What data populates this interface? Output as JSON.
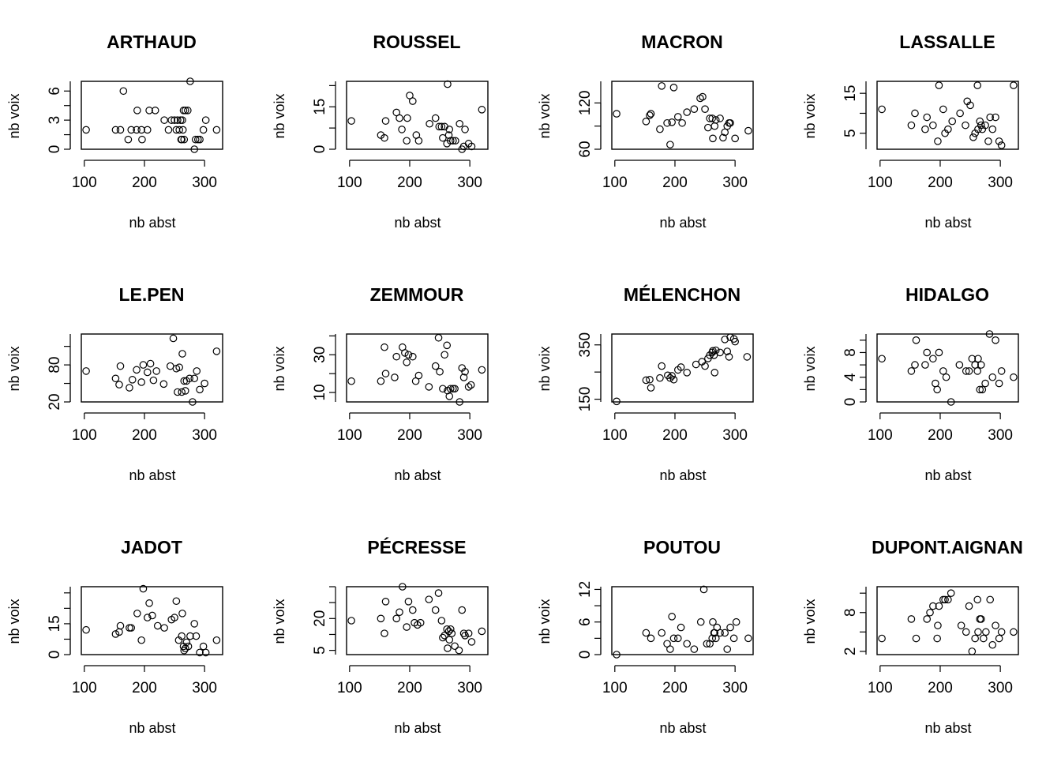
{
  "chart_data": [
    {
      "type": "scatter",
      "title": "ARTHAUD",
      "xlabel": "nb abst",
      "ylabel": "nb voix",
      "xlim": [
        95,
        330
      ],
      "ylim": [
        0,
        7
      ],
      "xticks": [
        100,
        200,
        300
      ],
      "yticks": [
        0,
        3,
        6
      ],
      "x": [
        103,
        152,
        160,
        165,
        173,
        178,
        187,
        188,
        195,
        196,
        205,
        208,
        218,
        233,
        240,
        245,
        250,
        253,
        255,
        258,
        260,
        261,
        262,
        263,
        264,
        265,
        266,
        268,
        272,
        276,
        283,
        285,
        289,
        292,
        298,
        302,
        320
      ],
      "y": [
        2,
        2,
        2,
        6,
        1,
        2,
        2,
        4,
        2,
        1,
        2,
        4,
        4,
        3,
        2,
        3,
        3,
        2,
        3,
        2,
        3,
        1,
        1,
        3,
        2,
        4,
        1,
        4,
        4,
        7,
        0,
        1,
        1,
        1,
        2,
        3,
        2
      ]
    },
    {
      "type": "scatter",
      "title": "ROUSSEL",
      "xlabel": "nb abst",
      "ylabel": "nb voix",
      "xlim": [
        95,
        330
      ],
      "ylim": [
        0,
        24
      ],
      "xticks": [
        100,
        200,
        300
      ],
      "yticks": [
        0,
        15
      ],
      "x": [
        103,
        152,
        158,
        160,
        178,
        183,
        187,
        195,
        196,
        200,
        205,
        211,
        215,
        233,
        243,
        249,
        253,
        255,
        258,
        262,
        263,
        265,
        266,
        268,
        272,
        276,
        283,
        287,
        290,
        292,
        298,
        303,
        320
      ],
      "y": [
        10,
        5,
        4,
        10,
        13,
        11,
        7,
        3,
        11,
        19,
        17,
        5,
        3,
        9,
        11,
        8,
        8,
        4,
        8,
        2,
        23,
        5,
        7,
        3,
        3,
        3,
        9,
        0,
        1,
        7,
        2,
        1,
        14
      ]
    },
    {
      "type": "scatter",
      "title": "MACRON",
      "xlabel": "nb abst",
      "ylabel": "nb voix",
      "xlim": [
        95,
        330
      ],
      "ylim": [
        60,
        148
      ],
      "xticks": [
        100,
        200,
        300
      ],
      "yticks": [
        60,
        120
      ],
      "x": [
        103,
        152,
        158,
        160,
        175,
        178,
        187,
        192,
        195,
        198,
        205,
        212,
        220,
        232,
        242,
        246,
        250,
        255,
        258,
        262,
        263,
        266,
        268,
        275,
        280,
        283,
        287,
        290,
        292,
        300,
        322
      ],
      "y": [
        106,
        96,
        104,
        106,
        86,
        142,
        94,
        66,
        95,
        140,
        102,
        94,
        108,
        112,
        126,
        128,
        112,
        88,
        100,
        100,
        74,
        90,
        98,
        100,
        75,
        82,
        90,
        94,
        94,
        74,
        84
      ]
    },
    {
      "type": "scatter",
      "title": "LASSALLE",
      "xlabel": "nb abst",
      "ylabel": "nb voix",
      "xlim": [
        95,
        330
      ],
      "ylim": [
        1,
        18
      ],
      "xticks": [
        100,
        200,
        300
      ],
      "yticks": [
        5,
        15
      ],
      "x": [
        103,
        152,
        158,
        175,
        178,
        188,
        196,
        198,
        205,
        208,
        213,
        220,
        233,
        242,
        245,
        250,
        255,
        258,
        262,
        263,
        266,
        268,
        270,
        275,
        280,
        283,
        287,
        292,
        298,
        302,
        322
      ],
      "y": [
        11,
        7,
        10,
        6,
        9,
        7,
        3,
        17,
        11,
        5,
        6,
        8,
        10,
        7,
        13,
        12,
        4,
        5,
        17,
        6,
        8,
        7,
        6,
        7,
        3,
        9,
        6,
        9,
        3,
        2,
        17
      ]
    },
    {
      "type": "scatter",
      "title": "LE.PEN",
      "xlabel": "nb abst",
      "ylabel": "nb voix",
      "xlim": [
        95,
        330
      ],
      "ylim": [
        20,
        130
      ],
      "xticks": [
        100,
        200,
        300
      ],
      "yticks": [
        20,
        80
      ],
      "x": [
        103,
        152,
        158,
        160,
        175,
        180,
        187,
        195,
        198,
        205,
        210,
        215,
        220,
        232,
        243,
        248,
        253,
        255,
        258,
        262,
        263,
        266,
        268,
        270,
        275,
        280,
        283,
        287,
        292,
        300,
        320
      ],
      "y": [
        70,
        58,
        48,
        78,
        43,
        56,
        72,
        52,
        80,
        68,
        82,
        55,
        70,
        49,
        78,
        123,
        74,
        36,
        76,
        36,
        98,
        54,
        38,
        54,
        58,
        20,
        58,
        70,
        40,
        50,
        102
      ]
    },
    {
      "type": "scatter",
      "title": "ZEMMOUR",
      "xlabel": "nb abst",
      "ylabel": "nb voix",
      "xlim": [
        95,
        330
      ],
      "ylim": [
        5,
        41
      ],
      "xticks": [
        100,
        200,
        300
      ],
      "yticks": [
        10,
        30
      ],
      "x": [
        103,
        152,
        158,
        160,
        175,
        178,
        188,
        192,
        195,
        198,
        205,
        210,
        215,
        232,
        243,
        248,
        250,
        255,
        258,
        262,
        263,
        266,
        268,
        272,
        275,
        283,
        287,
        290,
        292,
        298,
        302,
        320
      ],
      "y": [
        16,
        16,
        34,
        20,
        18,
        29,
        34,
        31,
        26,
        30,
        29,
        16,
        19,
        13,
        24,
        39,
        21,
        12,
        30,
        35,
        11,
        8,
        12,
        12,
        12,
        5,
        23,
        18,
        21,
        13,
        14,
        22
      ]
    },
    {
      "type": "scatter",
      "title": "MÉLENCHON",
      "xlabel": "nb abst",
      "ylabel": "nb voix",
      "xlim": [
        95,
        330
      ],
      "ylim": [
        140,
        390
      ],
      "xticks": [
        100,
        200,
        300
      ],
      "yticks": [
        150,
        350
      ],
      "x": [
        103,
        152,
        158,
        160,
        175,
        178,
        188,
        192,
        195,
        198,
        205,
        210,
        220,
        235,
        245,
        250,
        255,
        258,
        262,
        263,
        265,
        266,
        268,
        275,
        283,
        287,
        290,
        292,
        298,
        300,
        320
      ],
      "y": [
        142,
        220,
        222,
        192,
        228,
        272,
        238,
        228,
        236,
        222,
        258,
        268,
        248,
        278,
        288,
        272,
        300,
        312,
        322,
        328,
        312,
        248,
        330,
        322,
        370,
        326,
        306,
        378,
        372,
        362,
        306
      ]
    },
    {
      "type": "scatter",
      "title": "HIDALGO",
      "xlabel": "nb abst",
      "ylabel": "nb voix",
      "xlim": [
        95,
        330
      ],
      "ylim": [
        0,
        11
      ],
      "xticks": [
        100,
        200,
        300
      ],
      "yticks": [
        0,
        4,
        8
      ],
      "x": [
        103,
        152,
        158,
        160,
        175,
        178,
        188,
        192,
        195,
        198,
        205,
        210,
        218,
        232,
        243,
        248,
        253,
        258,
        262,
        263,
        266,
        268,
        270,
        275,
        282,
        287,
        292,
        298,
        302,
        322
      ],
      "y": [
        7,
        5,
        6,
        10,
        6,
        8,
        7,
        3,
        2,
        8,
        5,
        4,
        0,
        6,
        5,
        5,
        7,
        6,
        5,
        7,
        2,
        6,
        2,
        3,
        11,
        4,
        10,
        3,
        5,
        4
      ]
    },
    {
      "type": "scatter",
      "title": "JADOT",
      "xlabel": "nb abst",
      "ylabel": "nb voix",
      "xlim": [
        95,
        330
      ],
      "ylim": [
        0,
        33
      ],
      "xticks": [
        100,
        200,
        300
      ],
      "yticks": [
        0,
        15
      ],
      "x": [
        103,
        152,
        158,
        160,
        175,
        178,
        188,
        195,
        198,
        205,
        208,
        213,
        222,
        233,
        245,
        250,
        253,
        257,
        262,
        263,
        265,
        266,
        268,
        270,
        273,
        276,
        283,
        286,
        292,
        298,
        302,
        320
      ],
      "y": [
        12,
        10,
        11,
        14,
        13,
        13,
        20,
        7,
        32,
        18,
        25,
        19,
        14,
        13,
        17,
        18,
        26,
        7,
        9,
        20,
        4,
        2,
        3,
        6,
        4,
        9,
        15,
        9,
        1,
        4,
        1,
        7
      ]
    },
    {
      "type": "scatter",
      "title": "PÉCRESSE",
      "xlabel": "nb abst",
      "ylabel": "nb voix",
      "xlim": [
        95,
        330
      ],
      "ylim": [
        3,
        35
      ],
      "xticks": [
        100,
        200,
        300
      ],
      "yticks": [
        5,
        20
      ],
      "x": [
        103,
        152,
        158,
        160,
        178,
        183,
        188,
        195,
        198,
        205,
        208,
        213,
        218,
        232,
        243,
        248,
        253,
        255,
        258,
        262,
        263,
        265,
        266,
        268,
        270,
        275,
        282,
        287,
        290,
        292,
        298,
        303,
        320
      ],
      "y": [
        19,
        20,
        13,
        28,
        20,
        23,
        35,
        16,
        28,
        24,
        18,
        17,
        18,
        29,
        24,
        32,
        19,
        11,
        12,
        15,
        6,
        14,
        10,
        15,
        13,
        7,
        5,
        24,
        13,
        12,
        13,
        9,
        14
      ]
    },
    {
      "type": "scatter",
      "title": "POUTOU",
      "xlabel": "nb abst",
      "ylabel": "nb voix",
      "xlim": [
        95,
        330
      ],
      "ylim": [
        0,
        12.5
      ],
      "xticks": [
        100,
        200,
        300
      ],
      "yticks": [
        0,
        6,
        12
      ],
      "x": [
        103,
        152,
        160,
        178,
        187,
        192,
        195,
        198,
        205,
        210,
        220,
        232,
        243,
        248,
        253,
        258,
        262,
        263,
        265,
        266,
        268,
        270,
        275,
        283,
        287,
        292,
        298,
        302,
        322
      ],
      "y": [
        0,
        4,
        3,
        4,
        2,
        1,
        7,
        3,
        3,
        5,
        2,
        1,
        6,
        12,
        2,
        2,
        3,
        6,
        4,
        4,
        3,
        5,
        4,
        4,
        1,
        5,
        3,
        6,
        3
      ]
    },
    {
      "type": "scatter",
      "title": "DUPONT.AIGNAN",
      "xlabel": "nb abst",
      "ylabel": "nb voix",
      "xlim": [
        95,
        330
      ],
      "ylim": [
        1.5,
        12
      ],
      "xticks": [
        100,
        200,
        300
      ],
      "yticks": [
        2,
        8
      ],
      "x": [
        103,
        152,
        160,
        178,
        183,
        188,
        195,
        196,
        198,
        205,
        208,
        213,
        218,
        235,
        243,
        248,
        253,
        258,
        262,
        263,
        266,
        268,
        272,
        276,
        283,
        287,
        292,
        298,
        302,
        322
      ],
      "y": [
        4,
        7,
        4,
        7,
        8,
        9,
        4,
        6,
        9,
        10,
        10,
        10,
        11,
        6,
        5,
        9,
        2,
        4,
        10,
        5,
        7,
        7,
        4,
        5,
        10,
        3,
        6,
        4,
        5,
        5
      ]
    }
  ]
}
